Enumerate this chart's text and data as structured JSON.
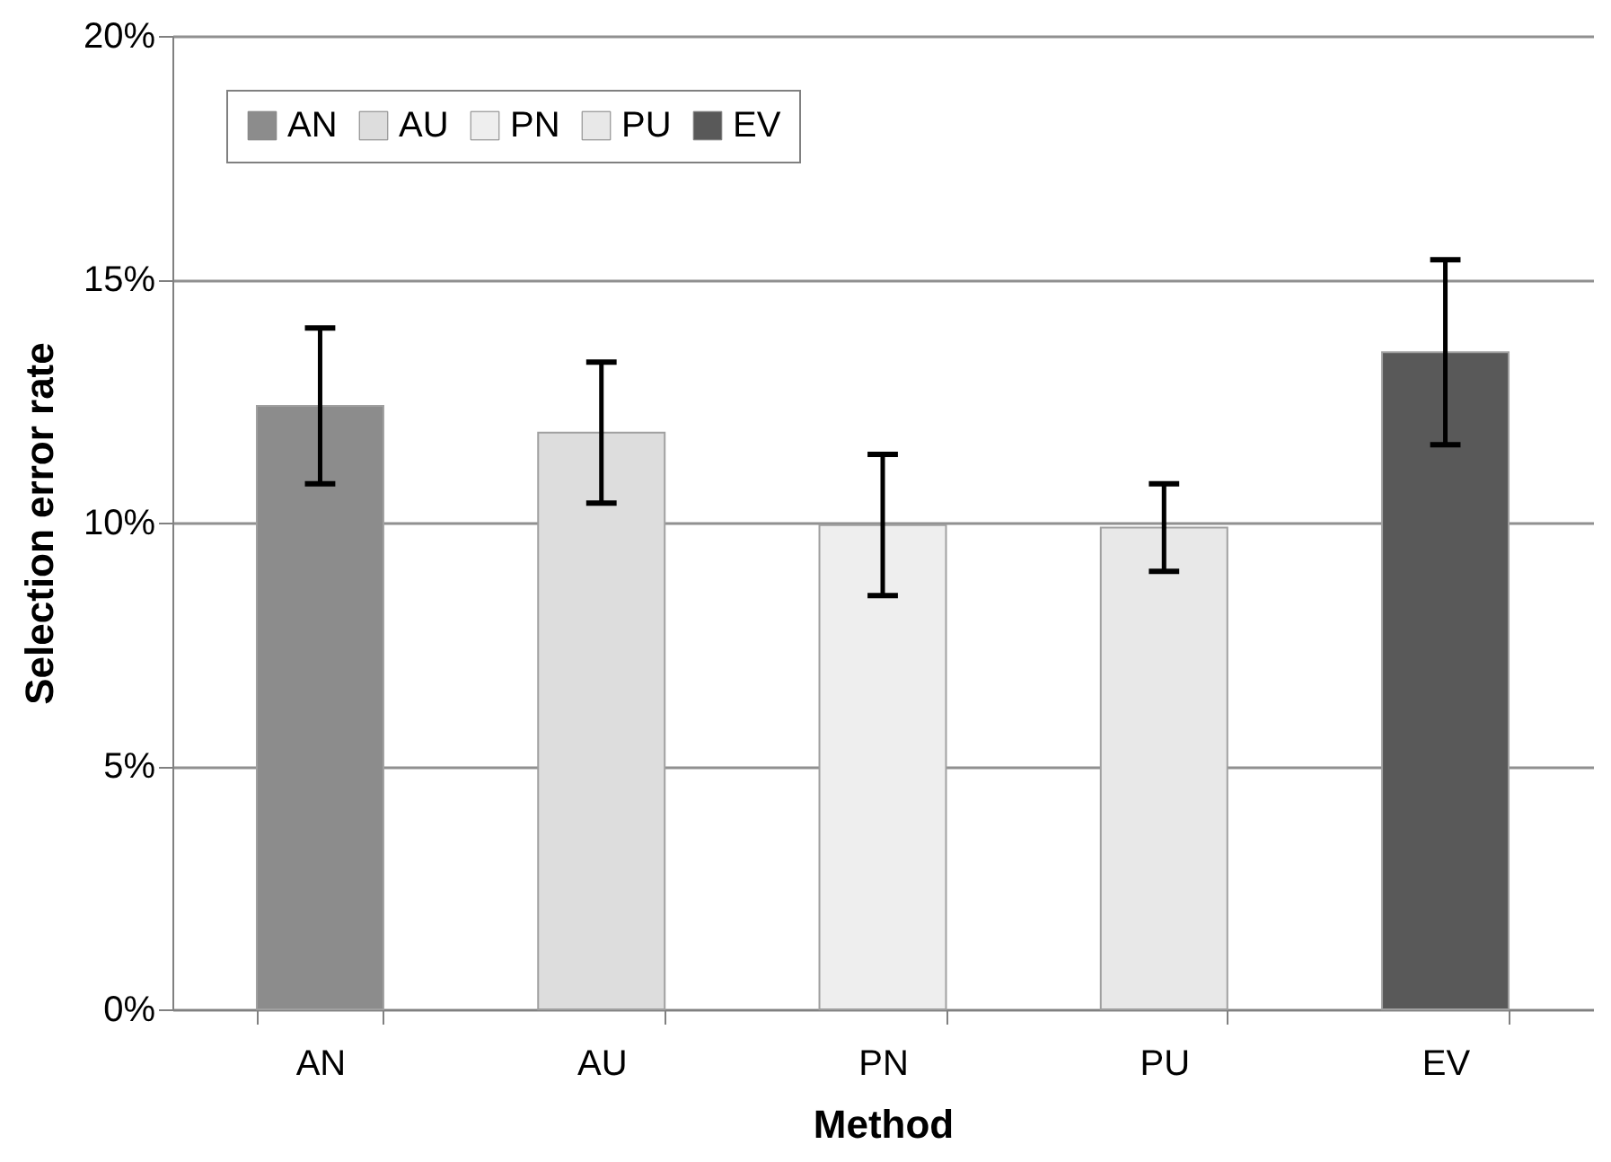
{
  "chart_data": {
    "type": "bar",
    "xlabel": "Method",
    "ylabel": "Selection error rate",
    "categories": [
      "AN",
      "AU",
      "PN",
      "PU",
      "EV"
    ],
    "series": [
      {
        "name": "AN",
        "color": "#8c8c8c",
        "values": [
          12.4,
          null,
          null,
          null,
          null
        ],
        "errors": [
          1.6,
          null,
          null,
          null,
          null
        ]
      },
      {
        "name": "AU",
        "color": "#dddddd",
        "values": [
          null,
          11.85,
          null,
          null,
          null
        ],
        "errors": [
          null,
          1.45,
          null,
          null,
          null
        ]
      },
      {
        "name": "PN",
        "color": "#eeeeee",
        "values": [
          null,
          null,
          9.95,
          null,
          null
        ],
        "errors": [
          null,
          null,
          1.45,
          null,
          null
        ]
      },
      {
        "name": "PU",
        "color": "#e8e8e8",
        "values": [
          null,
          null,
          null,
          9.9,
          null
        ],
        "errors": [
          null,
          null,
          null,
          0.9,
          null
        ]
      },
      {
        "name": "EV",
        "color": "#595959",
        "values": [
          null,
          null,
          null,
          null,
          13.5
        ],
        "errors": [
          null,
          null,
          null,
          null,
          1.9
        ]
      }
    ],
    "ylim": [
      0,
      20
    ],
    "yticks": [
      {
        "value": 0,
        "label": "0%"
      },
      {
        "value": 5,
        "label": "5%"
      },
      {
        "value": 10,
        "label": "10%"
      },
      {
        "value": 15,
        "label": "15%"
      },
      {
        "value": 20,
        "label": "20%"
      }
    ],
    "grid": "y",
    "legend": "top left"
  }
}
